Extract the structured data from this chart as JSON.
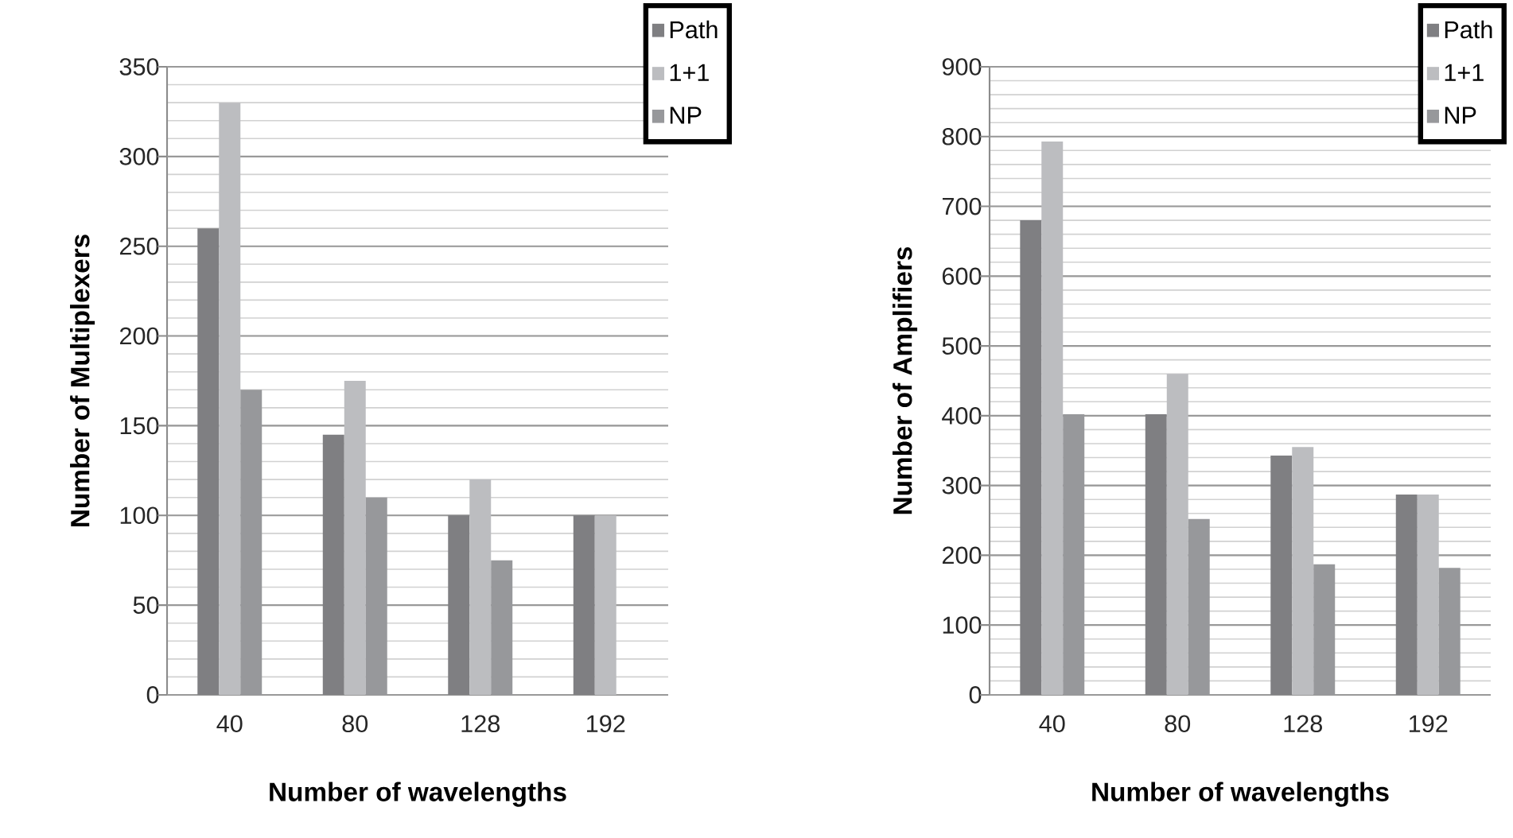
{
  "chart_data": [
    {
      "type": "bar",
      "xlabel": "Number of wavelengths",
      "ylabel": "Number of Multiplexers",
      "categories": [
        "40",
        "80",
        "128",
        "192"
      ],
      "series": [
        {
          "name": "Path",
          "color": "#7f7f82",
          "values": [
            260,
            145,
            100,
            100
          ]
        },
        {
          "name": "1+1",
          "color": "#bcbdc0",
          "values": [
            330,
            175,
            120,
            100
          ]
        },
        {
          "name": "NP",
          "color": "#97989b",
          "values": [
            170,
            110,
            75,
            null
          ]
        }
      ],
      "ylim": [
        0,
        350
      ],
      "yticks": [
        0,
        {
          "value": 10,
          "label": null
        },
        {
          "value": 20,
          "label": null
        },
        {
          "value": 30,
          "label": null
        },
        {
          "value": 40,
          "label": null
        },
        50,
        {
          "value": 60,
          "label": null
        },
        {
          "value": 70,
          "label": null
        },
        {
          "value": 80,
          "label": null
        },
        {
          "value": 90,
          "label": null
        },
        100,
        {
          "value": 110,
          "label": null
        },
        {
          "value": 120,
          "label": null
        },
        {
          "value": 130,
          "label": null
        },
        {
          "value": 140,
          "label": null
        },
        150,
        {
          "value": 160,
          "label": null
        },
        {
          "value": 170,
          "label": null
        },
        {
          "value": 180,
          "label": null
        },
        {
          "value": 190,
          "label": null
        },
        200,
        {
          "value": 210,
          "label": null
        },
        {
          "value": 220,
          "label": null
        },
        {
          "value": 230,
          "label": null
        },
        {
          "value": 240,
          "label": null
        },
        250,
        {
          "value": 260,
          "label": null
        },
        {
          "value": 270,
          "label": null
        },
        {
          "value": 280,
          "label": null
        },
        {
          "value": 290,
          "label": null
        },
        300,
        {
          "value": 310,
          "label": null
        },
        {
          "value": 320,
          "label": null
        },
        {
          "value": 330,
          "label": null
        },
        {
          "value": 340,
          "label": null
        },
        350
      ],
      "grid": "y",
      "legend": "top right"
    },
    {
      "type": "bar",
      "xlabel": "Number of wavelengths",
      "ylabel": "Number of Amplifiers",
      "categories": [
        "40",
        "80",
        "128",
        "192"
      ],
      "series": [
        {
          "name": "Path",
          "color": "#7f7f82",
          "values": [
            680,
            402,
            343,
            287
          ]
        },
        {
          "name": "1+1",
          "color": "#bcbdc0",
          "values": [
            793,
            460,
            355,
            287
          ]
        },
        {
          "name": "NP",
          "color": "#97989b",
          "values": [
            402,
            252,
            187,
            182
          ]
        }
      ],
      "ylim": [
        0,
        900
      ],
      "yticks": [
        0,
        {
          "value": 20,
          "label": null
        },
        {
          "value": 40,
          "label": null
        },
        {
          "value": 60,
          "label": null
        },
        {
          "value": 80,
          "label": null
        },
        100,
        {
          "value": 120,
          "label": null
        },
        {
          "value": 140,
          "label": null
        },
        {
          "value": 160,
          "label": null
        },
        {
          "value": 180,
          "label": null
        },
        200,
        {
          "value": 220,
          "label": null
        },
        {
          "value": 240,
          "label": null
        },
        {
          "value": 260,
          "label": null
        },
        {
          "value": 280,
          "label": null
        },
        300,
        {
          "value": 320,
          "label": null
        },
        {
          "value": 340,
          "label": null
        },
        {
          "value": 360,
          "label": null
        },
        {
          "value": 380,
          "label": null
        },
        400,
        {
          "value": 420,
          "label": null
        },
        {
          "value": 440,
          "label": null
        },
        {
          "value": 460,
          "label": null
        },
        {
          "value": 480,
          "label": null
        },
        500,
        {
          "value": 520,
          "label": null
        },
        {
          "value": 540,
          "label": null
        },
        {
          "value": 560,
          "label": null
        },
        {
          "value": 580,
          "label": null
        },
        600,
        {
          "value": 620,
          "label": null
        },
        {
          "value": 640,
          "label": null
        },
        {
          "value": 660,
          "label": null
        },
        {
          "value": 680,
          "label": null
        },
        700,
        {
          "value": 720,
          "label": null
        },
        {
          "value": 740,
          "label": null
        },
        {
          "value": 760,
          "label": null
        },
        {
          "value": 780,
          "label": null
        },
        800,
        {
          "value": 820,
          "label": null
        },
        {
          "value": 840,
          "label": null
        },
        {
          "value": 860,
          "label": null
        },
        {
          "value": 880,
          "label": null
        },
        900
      ],
      "grid": "y",
      "legend": "top right"
    }
  ]
}
